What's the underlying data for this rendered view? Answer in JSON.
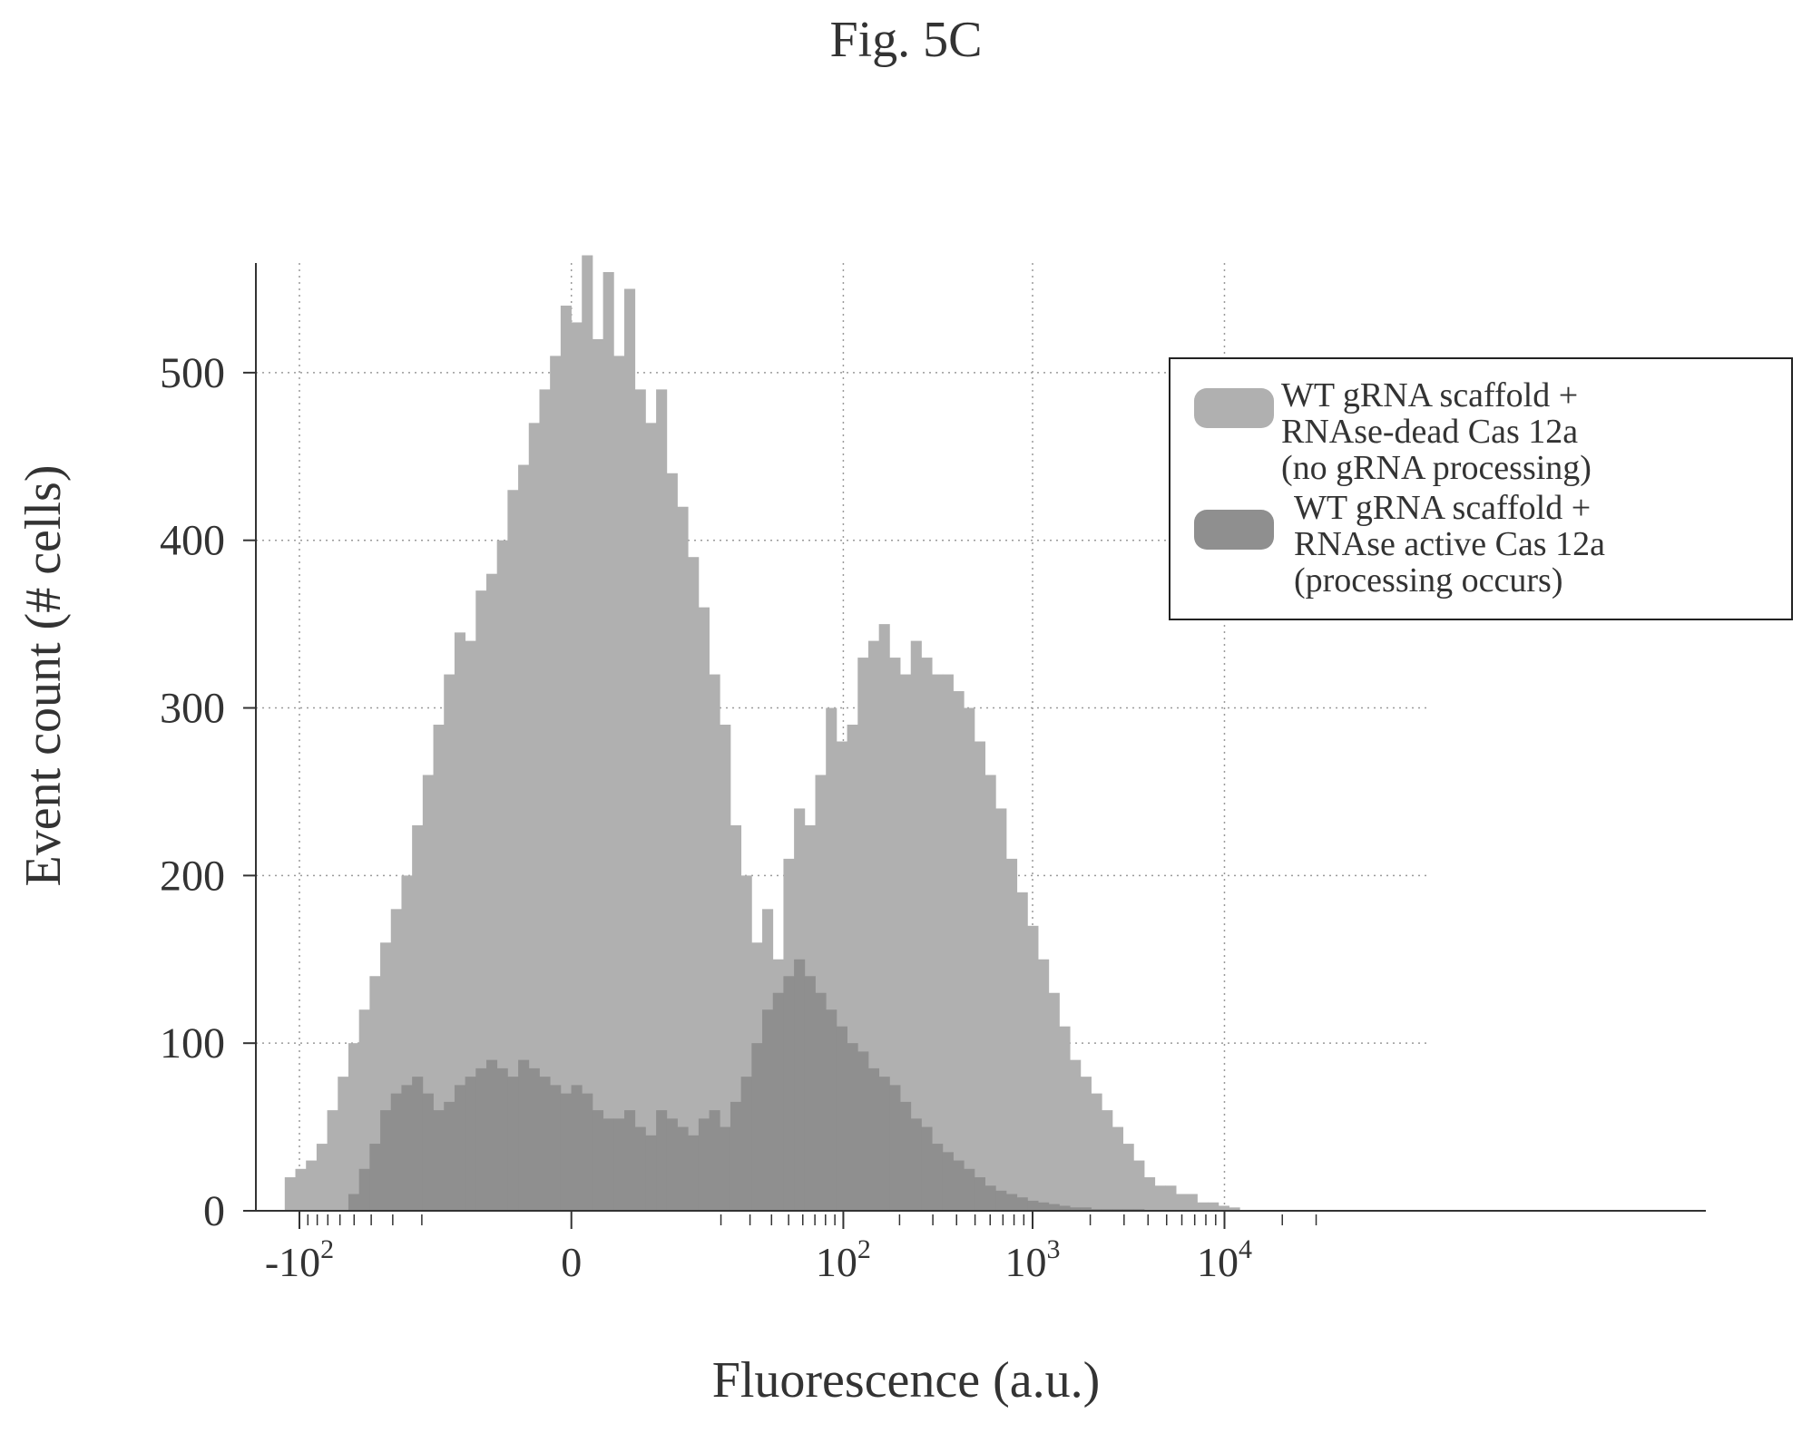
{
  "figure_title": "Fig. 5C",
  "chart_data": {
    "type": "bar",
    "xlabel": "Fluorescence (a.u.)",
    "ylabel": "Event count (# cells)",
    "x_scale": "biexponential (symmetric log)",
    "xlim": [
      -120,
      30000
    ],
    "ylim": [
      0,
      580
    ],
    "x_ticks": [
      -100,
      0,
      100,
      1000,
      10000
    ],
    "x_tick_labels": [
      "-10",
      "0",
      "10",
      "10",
      "10"
    ],
    "x_tick_exponents": [
      "2",
      "",
      "2",
      "3",
      "4"
    ],
    "y_ticks": [
      0,
      100,
      200,
      300,
      400,
      500
    ],
    "y_tick_labels": [
      "0",
      "100",
      "200",
      "300",
      "400",
      "500"
    ],
    "grid": true,
    "legend_position": "top-right",
    "colors": {
      "dead": "#b0b0b0",
      "active": "#8f8f8f",
      "axis": "#333333",
      "grid": "#9a9a9a"
    },
    "series": [
      {
        "name": "WT gRNA scaffold + RNAse-dead Cas 12a (no gRNA processing)",
        "legend_lines": [
          "WT gRNA scaffold +",
          "RNAse-dead Cas 12a",
          "(no gRNA processing)"
        ],
        "counts": [
          20,
          25,
          30,
          40,
          60,
          80,
          100,
          120,
          140,
          160,
          180,
          200,
          230,
          260,
          290,
          320,
          345,
          340,
          370,
          380,
          400,
          430,
          445,
          470,
          490,
          510,
          540,
          530,
          570,
          520,
          560,
          510,
          550,
          490,
          470,
          490,
          440,
          420,
          390,
          360,
          320,
          290,
          230,
          200,
          160,
          180,
          150,
          210,
          240,
          230,
          260,
          300,
          280,
          290,
          330,
          340,
          350,
          330,
          320,
          340,
          330,
          320,
          320,
          310,
          300,
          280,
          260,
          240,
          210,
          190,
          170,
          150,
          130,
          110,
          90,
          80,
          70,
          60,
          50,
          40,
          30,
          20,
          15,
          15,
          10,
          10,
          5,
          5,
          3,
          2
        ]
      },
      {
        "name": "WT gRNA scaffold + RNAse active Cas 12a (processing occurs)",
        "legend_lines": [
          "WT gRNA scaffold +",
          "RNAse active Cas 12a",
          "(processing occurs)"
        ],
        "counts": [
          0,
          0,
          0,
          0,
          0,
          0,
          10,
          25,
          40,
          60,
          70,
          75,
          80,
          70,
          60,
          65,
          75,
          80,
          85,
          90,
          85,
          80,
          90,
          85,
          80,
          75,
          70,
          75,
          70,
          60,
          55,
          55,
          60,
          50,
          45,
          60,
          55,
          50,
          45,
          55,
          60,
          50,
          65,
          80,
          100,
          120,
          130,
          140,
          150,
          140,
          130,
          120,
          110,
          100,
          95,
          85,
          80,
          75,
          65,
          55,
          50,
          40,
          35,
          30,
          25,
          20,
          15,
          12,
          10,
          8,
          6,
          5,
          4,
          3,
          2,
          2,
          1,
          1,
          1,
          1,
          1,
          0,
          0,
          0,
          0,
          0,
          0,
          0,
          0,
          0
        ]
      }
    ]
  }
}
